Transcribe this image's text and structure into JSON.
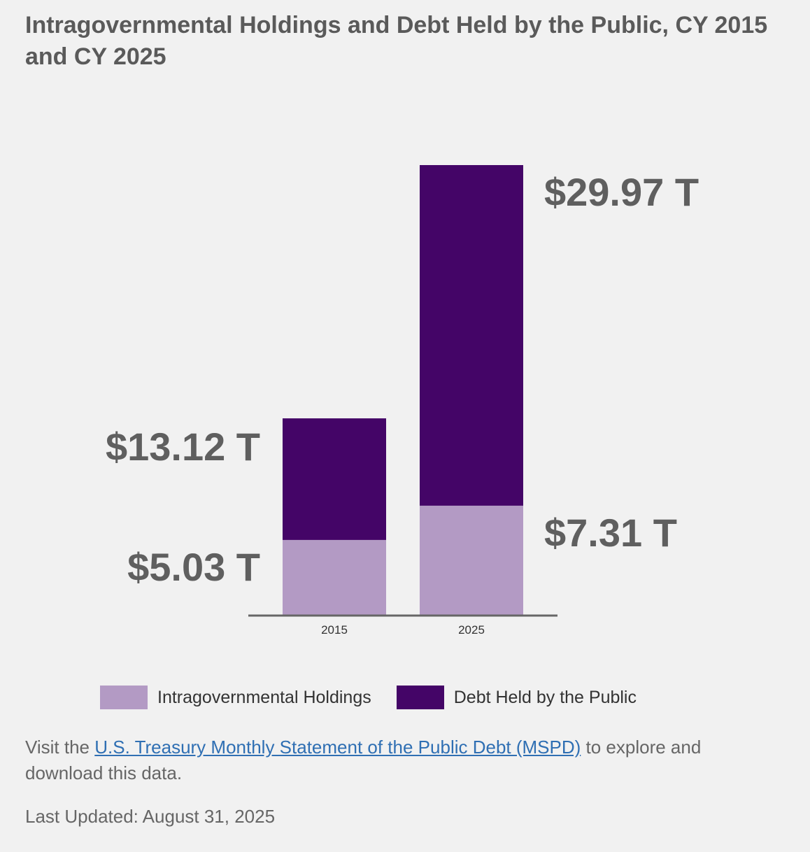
{
  "title": "Intragovernmental Holdings and Debt Held by the Public, CY 2015 and CY 2025",
  "chart_data": {
    "type": "bar",
    "stacked": true,
    "categories": [
      "2015",
      "2025"
    ],
    "series": [
      {
        "name": "Intragovernmental Holdings",
        "values": [
          5.03,
          7.31
        ],
        "color": "#b39ac4"
      },
      {
        "name": "Debt Held by the Public",
        "values": [
          8.09,
          22.66
        ],
        "color": "#440567"
      }
    ],
    "totals": [
      13.12,
      29.97
    ],
    "labels": {
      "intragov": [
        "$5.03 T",
        "$7.31 T"
      ],
      "total": [
        "$13.12 T",
        "$29.97 T"
      ]
    },
    "ylim": [
      0,
      29.97
    ],
    "axis_color": "#666666",
    "legend_position": "bottom"
  },
  "legend": {
    "intragov_label": "Intragovernmental Holdings",
    "public_label": "Debt Held by the Public"
  },
  "footer": {
    "prefix": "Visit the ",
    "link_text": "U.S. Treasury Monthly Statement of the Public Debt (MSPD)",
    "suffix": " to explore and download this data.",
    "last_updated": "Last Updated: August 31, 2025"
  }
}
